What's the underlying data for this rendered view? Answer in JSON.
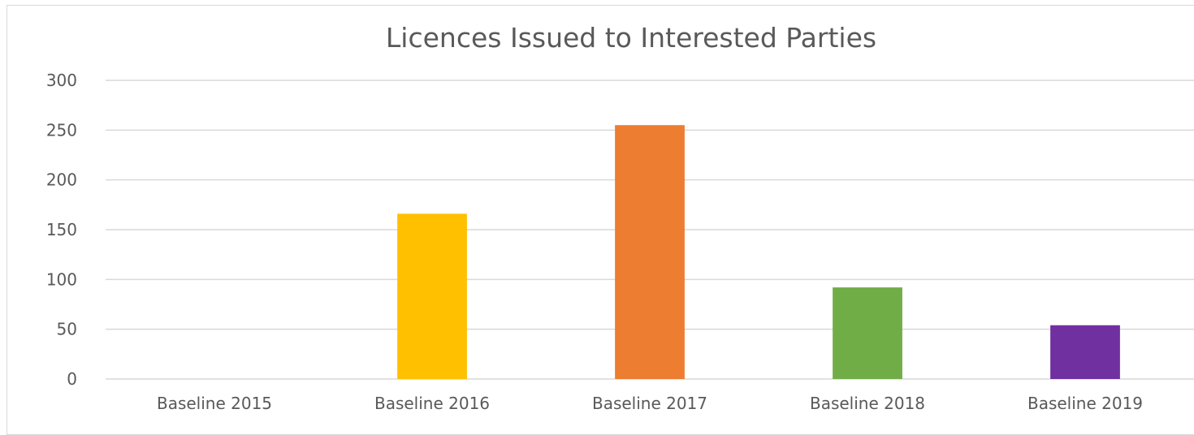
{
  "chart_data": {
    "type": "bar",
    "title": "Licences Issued to Interested Parties",
    "xlabel": "",
    "ylabel": "",
    "categories": [
      "Baseline 2015",
      "Baseline 2016",
      "Baseline 2017",
      "Baseline 2018",
      "Baseline 2019"
    ],
    "values": [
      0,
      166,
      255,
      92,
      54
    ],
    "colors": [
      "#4472c4",
      "#ffc000",
      "#ed7d31",
      "#70ad47",
      "#7030a0"
    ],
    "ylim": [
      0,
      300
    ],
    "yticks": [
      0,
      50,
      100,
      150,
      200,
      250,
      300
    ],
    "grid": true,
    "legend": "none"
  }
}
